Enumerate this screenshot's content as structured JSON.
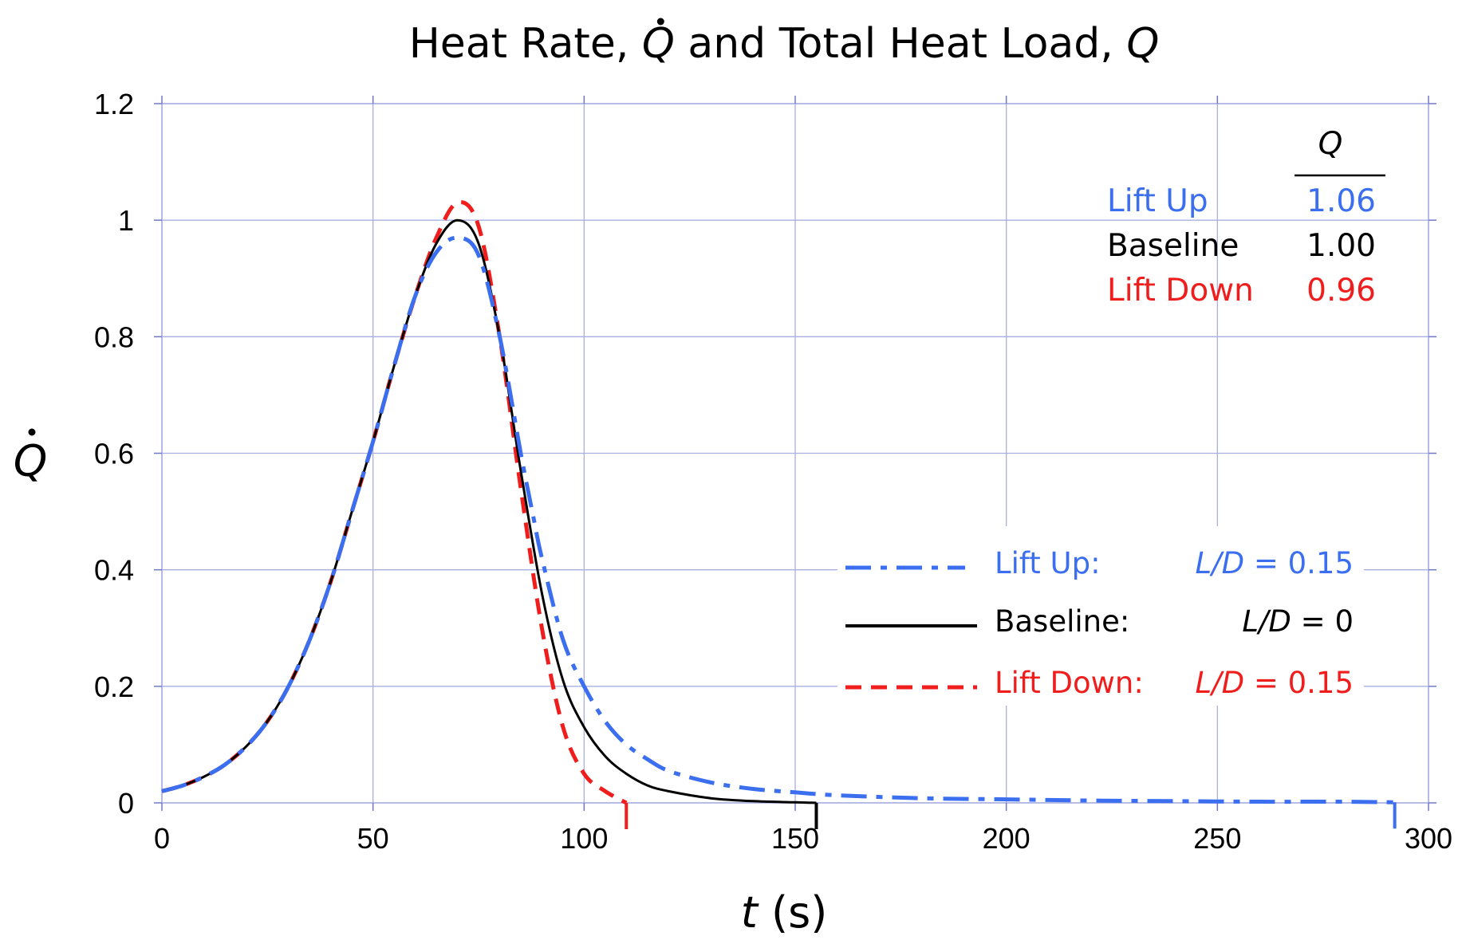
{
  "chart_data": {
    "type": "line",
    "title": {
      "prefix": "Heat Rate, ",
      "qdot": "Q",
      "middle": " and Total Heat Load, ",
      "q": "Q"
    },
    "xlabel": {
      "var": "t",
      "unit": " (s)"
    },
    "ylabel": "Q",
    "xlim": [
      0,
      300
    ],
    "ylim": [
      0,
      1.2
    ],
    "x_ticks": [
      "0",
      "50",
      "100",
      "150",
      "200",
      "250",
      "300"
    ],
    "y_ticks": [
      "0",
      "0.2",
      "0.4",
      "0.6",
      "0.8",
      "1",
      "1.2"
    ],
    "grid": true,
    "legend": {
      "placement": "lower-right",
      "entries": [
        {
          "label": "Lift Up:",
          "ld_var": "L/D",
          "ld_value": " = 0.15"
        },
        {
          "label": "Baseline:",
          "ld_var": "L/D",
          "ld_value": " = 0"
        },
        {
          "label": "Lift Down:",
          "ld_var": "L/D",
          "ld_value": " = 0.15"
        }
      ]
    },
    "q_table": {
      "placement": "upper-right",
      "header": "Q",
      "rows": [
        {
          "label": "Lift Up",
          "value": "1.06"
        },
        {
          "label": "Baseline",
          "value": "1.00"
        },
        {
          "label": "Lift Down",
          "value": "0.96"
        }
      ]
    },
    "series": [
      {
        "name": "Lift Up",
        "color": "#3b6ff0",
        "dash": "dash-dot",
        "x": [
          0,
          5,
          10,
          15,
          20,
          25,
          30,
          35,
          40,
          45,
          50,
          55,
          60,
          65,
          70,
          75,
          80,
          85,
          88,
          90,
          95,
          100,
          105,
          110,
          115,
          120,
          130,
          140,
          150,
          160,
          180,
          200,
          220,
          240,
          260,
          280,
          292
        ],
        "y": [
          0.02,
          0.03,
          0.045,
          0.066,
          0.097,
          0.14,
          0.2,
          0.28,
          0.38,
          0.5,
          0.62,
          0.75,
          0.87,
          0.945,
          0.97,
          0.94,
          0.8,
          0.6,
          0.49,
          0.42,
          0.28,
          0.2,
          0.14,
          0.1,
          0.075,
          0.055,
          0.035,
          0.024,
          0.018,
          0.013,
          0.008,
          0.006,
          0.004,
          0.003,
          0.002,
          0.002,
          0.001
        ]
      },
      {
        "name": "Baseline",
        "color": "#000000",
        "dash": "solid",
        "x": [
          0,
          5,
          10,
          15,
          20,
          25,
          30,
          35,
          40,
          45,
          50,
          55,
          60,
          65,
          70,
          75,
          80,
          85,
          90,
          95,
          100,
          105,
          110,
          115,
          120,
          130,
          140,
          150,
          155
        ],
        "y": [
          0.02,
          0.03,
          0.045,
          0.066,
          0.097,
          0.14,
          0.2,
          0.28,
          0.38,
          0.5,
          0.62,
          0.75,
          0.87,
          0.96,
          1.0,
          0.96,
          0.8,
          0.57,
          0.36,
          0.21,
          0.13,
          0.08,
          0.05,
          0.03,
          0.02,
          0.008,
          0.003,
          0.001,
          0.0
        ]
      },
      {
        "name": "Lift Down",
        "color": "#f01d1d",
        "dash": "dashed",
        "x": [
          0,
          5,
          10,
          15,
          20,
          25,
          30,
          35,
          40,
          45,
          50,
          55,
          60,
          65,
          70,
          75,
          80,
          85,
          90,
          95,
          100,
          105,
          110
        ],
        "y": [
          0.02,
          0.03,
          0.045,
          0.066,
          0.097,
          0.14,
          0.2,
          0.28,
          0.38,
          0.5,
          0.62,
          0.75,
          0.87,
          0.97,
          1.03,
          0.99,
          0.8,
          0.54,
          0.3,
          0.13,
          0.05,
          0.02,
          0.0
        ]
      }
    ]
  }
}
